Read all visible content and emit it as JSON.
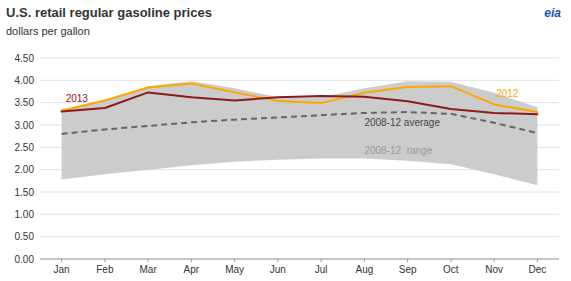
{
  "chart_data": {
    "type": "line",
    "title": "U.S. retail regular gasoline prices",
    "subtitle": "dollars per gallon",
    "annotations": [
      {
        "text": "eia"
      }
    ],
    "categories": [
      "Jan",
      "Feb",
      "Mar",
      "Apr",
      "May",
      "Jun",
      "Jul",
      "Aug",
      "Sep",
      "Oct",
      "Nov",
      "Dec"
    ],
    "series": [
      {
        "name": "2008-12  range",
        "type": "area",
        "color": "#CCCCCC",
        "low": [
          1.78,
          1.9,
          2.0,
          2.1,
          2.18,
          2.22,
          2.25,
          2.25,
          2.2,
          2.12,
          1.9,
          1.65
        ],
        "high": [
          3.35,
          3.55,
          3.87,
          3.98,
          3.82,
          3.62,
          3.62,
          3.82,
          3.98,
          3.97,
          3.72,
          3.4
        ]
      },
      {
        "name": "2008-12 average",
        "type": "line",
        "color": "#666666",
        "line_style": "dashed",
        "values": [
          2.8,
          2.9,
          2.98,
          3.06,
          3.12,
          3.17,
          3.22,
          3.27,
          3.29,
          3.25,
          3.05,
          2.82
        ]
      },
      {
        "name": "2012",
        "type": "line",
        "color": "#FFA500",
        "line_style": "solid",
        "values": [
          3.32,
          3.55,
          3.84,
          3.93,
          3.73,
          3.54,
          3.49,
          3.72,
          3.85,
          3.87,
          3.46,
          3.29
        ]
      },
      {
        "name": "2013",
        "type": "line",
        "color": "#8B1A1A",
        "line_style": "solid",
        "values": [
          3.3,
          3.38,
          3.73,
          3.62,
          3.55,
          3.62,
          3.65,
          3.63,
          3.53,
          3.36,
          3.27,
          3.24
        ]
      }
    ],
    "ylim": [
      0.0,
      4.5
    ],
    "yticks": [
      {
        "value": 0.0,
        "label": "0.00"
      },
      {
        "value": 0.5,
        "label": "0.50"
      },
      {
        "value": 1.0,
        "label": "1.00"
      },
      {
        "value": 1.5,
        "label": "1.50"
      },
      {
        "value": 2.0,
        "label": "2.00"
      },
      {
        "value": 2.5,
        "label": "2.50"
      },
      {
        "value": 3.0,
        "label": "3.00"
      },
      {
        "value": 3.5,
        "label": "3.50"
      },
      {
        "value": 4.0,
        "label": "4.00"
      },
      {
        "value": 4.5,
        "label": "4.50"
      }
    ],
    "grid": true
  }
}
